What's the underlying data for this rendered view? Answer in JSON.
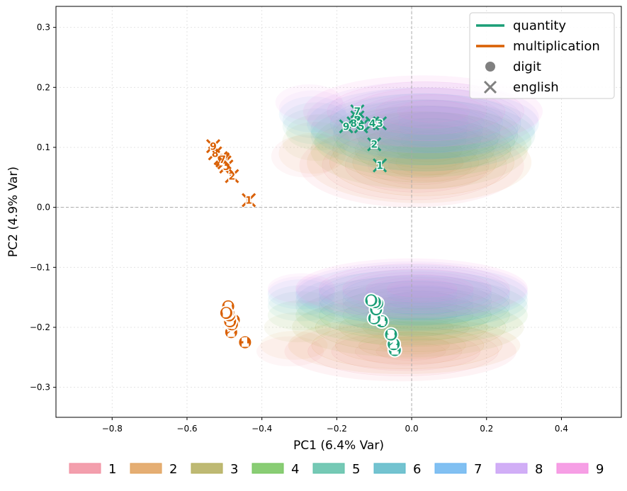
{
  "chart_data": {
    "type": "scatter",
    "title": "",
    "xlabel": "PC1 (6.4% Var)",
    "ylabel": "PC2 (4.9% Var)",
    "xlim": [
      -0.95,
      0.56
    ],
    "ylim": [
      -0.35,
      0.335
    ],
    "xticks": [
      -0.8,
      -0.6,
      -0.4,
      -0.2,
      0.0,
      0.2,
      0.4
    ],
    "xtick_labels": [
      "−0.8",
      "−0.6",
      "−0.4",
      "−0.2",
      "0.0",
      "0.2",
      "0.4"
    ],
    "yticks": [
      -0.3,
      -0.2,
      -0.1,
      0.0,
      0.1,
      0.2,
      0.3
    ],
    "ytick_labels": [
      "−0.3",
      "−0.2",
      "−0.1",
      "0.0",
      "0.1",
      "0.2",
      "0.3"
    ],
    "grid": true,
    "zero_lines": true,
    "colors": {
      "quantity": "#1b9e77",
      "multiplication": "#d95f02",
      "marker_gray": "#808080"
    },
    "legend": {
      "placement": "top-right",
      "entries": [
        {
          "label": "quantity",
          "kind": "line",
          "color": "#1b9e77"
        },
        {
          "label": "multiplication",
          "kind": "line",
          "color": "#d95f02"
        },
        {
          "label": "digit",
          "kind": "circle",
          "color": "#808080"
        },
        {
          "label": "english",
          "kind": "x",
          "color": "#808080"
        }
      ]
    },
    "density_legend": {
      "placement": "bottom",
      "entries": [
        {
          "label": "1",
          "color": "#f18e9f"
        },
        {
          "label": "2",
          "color": "#e0a05a"
        },
        {
          "label": "3",
          "color": "#b3ad5a"
        },
        {
          "label": "4",
          "color": "#74c45c"
        },
        {
          "label": "5",
          "color": "#5dbfa8"
        },
        {
          "label": "6",
          "color": "#5ab8c8"
        },
        {
          "label": "7",
          "color": "#6bb5f0"
        },
        {
          "label": "8",
          "color": "#c9a0f5"
        },
        {
          "label": "9",
          "color": "#f58ee0"
        }
      ]
    },
    "series": [
      {
        "name": "quantity-english",
        "group": "quantity",
        "marker": "x",
        "points": [
          {
            "label": "1",
            "x": -0.085,
            "y": 0.07
          },
          {
            "label": "2",
            "x": -0.1,
            "y": 0.105
          },
          {
            "label": "3",
            "x": -0.085,
            "y": 0.14
          },
          {
            "label": "4",
            "x": -0.105,
            "y": 0.14
          },
          {
            "label": "5",
            "x": -0.135,
            "y": 0.135
          },
          {
            "label": "6",
            "x": -0.145,
            "y": 0.15
          },
          {
            "label": "7",
            "x": -0.145,
            "y": 0.16
          },
          {
            "label": "8",
            "x": -0.155,
            "y": 0.14
          },
          {
            "label": "9",
            "x": -0.175,
            "y": 0.135
          }
        ]
      },
      {
        "name": "multiplication-english",
        "group": "multiplication",
        "marker": "x",
        "points": [
          {
            "label": "1",
            "x": -0.435,
            "y": 0.012
          },
          {
            "label": "2",
            "x": -0.48,
            "y": 0.052
          },
          {
            "label": "3",
            "x": -0.495,
            "y": 0.068
          },
          {
            "label": "4",
            "x": -0.5,
            "y": 0.075
          },
          {
            "label": "5",
            "x": -0.505,
            "y": 0.078
          },
          {
            "label": "6",
            "x": -0.51,
            "y": 0.082
          },
          {
            "label": "7",
            "x": -0.505,
            "y": 0.08
          },
          {
            "label": "8",
            "x": -0.525,
            "y": 0.09
          },
          {
            "label": "9",
            "x": -0.53,
            "y": 0.102
          }
        ]
      },
      {
        "name": "quantity-digit",
        "group": "quantity",
        "marker": "circle",
        "points": [
          {
            "label": "1",
            "x": -0.045,
            "y": -0.238
          },
          {
            "label": "2",
            "x": -0.048,
            "y": -0.228
          },
          {
            "label": "3",
            "x": -0.055,
            "y": -0.212
          },
          {
            "label": "4",
            "x": -0.08,
            "y": -0.19
          },
          {
            "label": "5",
            "x": -0.1,
            "y": -0.185
          },
          {
            "label": "6",
            "x": -0.095,
            "y": -0.17
          },
          {
            "label": "7",
            "x": -0.092,
            "y": -0.16
          },
          {
            "label": "8",
            "x": -0.098,
            "y": -0.158
          },
          {
            "label": "9",
            "x": -0.108,
            "y": -0.155
          }
        ]
      },
      {
        "name": "multiplication-digit",
        "group": "multiplication",
        "marker": "circle",
        "points": [
          {
            "label": "1",
            "x": -0.445,
            "y": -0.225
          },
          {
            "label": "2",
            "x": -0.482,
            "y": -0.208
          },
          {
            "label": "3",
            "x": -0.475,
            "y": -0.188
          },
          {
            "label": "4",
            "x": -0.48,
            "y": -0.195
          },
          {
            "label": "5",
            "x": -0.485,
            "y": -0.19
          },
          {
            "label": "6",
            "x": -0.487,
            "y": -0.18
          },
          {
            "label": "7",
            "x": -0.49,
            "y": -0.175
          },
          {
            "label": "8",
            "x": -0.49,
            "y": -0.165
          },
          {
            "label": "9",
            "x": -0.495,
            "y": -0.176
          }
        ]
      }
    ],
    "density_clusters": [
      {
        "name": "upper",
        "digits": [
          {
            "label": "1",
            "cx": 0.0,
            "cy": 0.07,
            "rx": 0.3,
            "ry": 0.07
          },
          {
            "label": "2",
            "cx": 0.02,
            "cy": 0.075,
            "rx": 0.3,
            "ry": 0.068
          },
          {
            "label": "3",
            "cx": 0.02,
            "cy": 0.095,
            "rx": 0.29,
            "ry": 0.065
          },
          {
            "label": "4",
            "cx": 0.03,
            "cy": 0.11,
            "rx": 0.29,
            "ry": 0.06
          },
          {
            "label": "5",
            "cx": 0.03,
            "cy": 0.12,
            "rx": 0.3,
            "ry": 0.06
          },
          {
            "label": "6",
            "cx": 0.03,
            "cy": 0.13,
            "rx": 0.3,
            "ry": 0.06
          },
          {
            "label": "7",
            "cx": 0.03,
            "cy": 0.14,
            "rx": 0.31,
            "ry": 0.06
          },
          {
            "label": "8",
            "cx": 0.03,
            "cy": 0.15,
            "rx": 0.31,
            "ry": 0.06
          },
          {
            "label": "9",
            "cx": 0.03,
            "cy": 0.16,
            "rx": 0.32,
            "ry": 0.06
          }
        ]
      },
      {
        "name": "lower",
        "digits": [
          {
            "label": "1",
            "cx": -0.03,
            "cy": -0.24,
            "rx": 0.31,
            "ry": 0.05
          },
          {
            "label": "2",
            "cx": -0.02,
            "cy": -0.23,
            "rx": 0.31,
            "ry": 0.048
          },
          {
            "label": "3",
            "cx": -0.01,
            "cy": -0.2,
            "rx": 0.31,
            "ry": 0.05
          },
          {
            "label": "4",
            "cx": 0.0,
            "cy": -0.18,
            "rx": 0.31,
            "ry": 0.05
          },
          {
            "label": "5",
            "cx": 0.0,
            "cy": -0.165,
            "rx": 0.31,
            "ry": 0.05
          },
          {
            "label": "6",
            "cx": 0.0,
            "cy": -0.155,
            "rx": 0.31,
            "ry": 0.05
          },
          {
            "label": "7",
            "cx": 0.0,
            "cy": -0.145,
            "rx": 0.31,
            "ry": 0.05
          },
          {
            "label": "8",
            "cx": 0.0,
            "cy": -0.14,
            "rx": 0.31,
            "ry": 0.05
          },
          {
            "label": "9",
            "cx": 0.0,
            "cy": -0.135,
            "rx": 0.31,
            "ry": 0.05
          }
        ]
      }
    ]
  }
}
